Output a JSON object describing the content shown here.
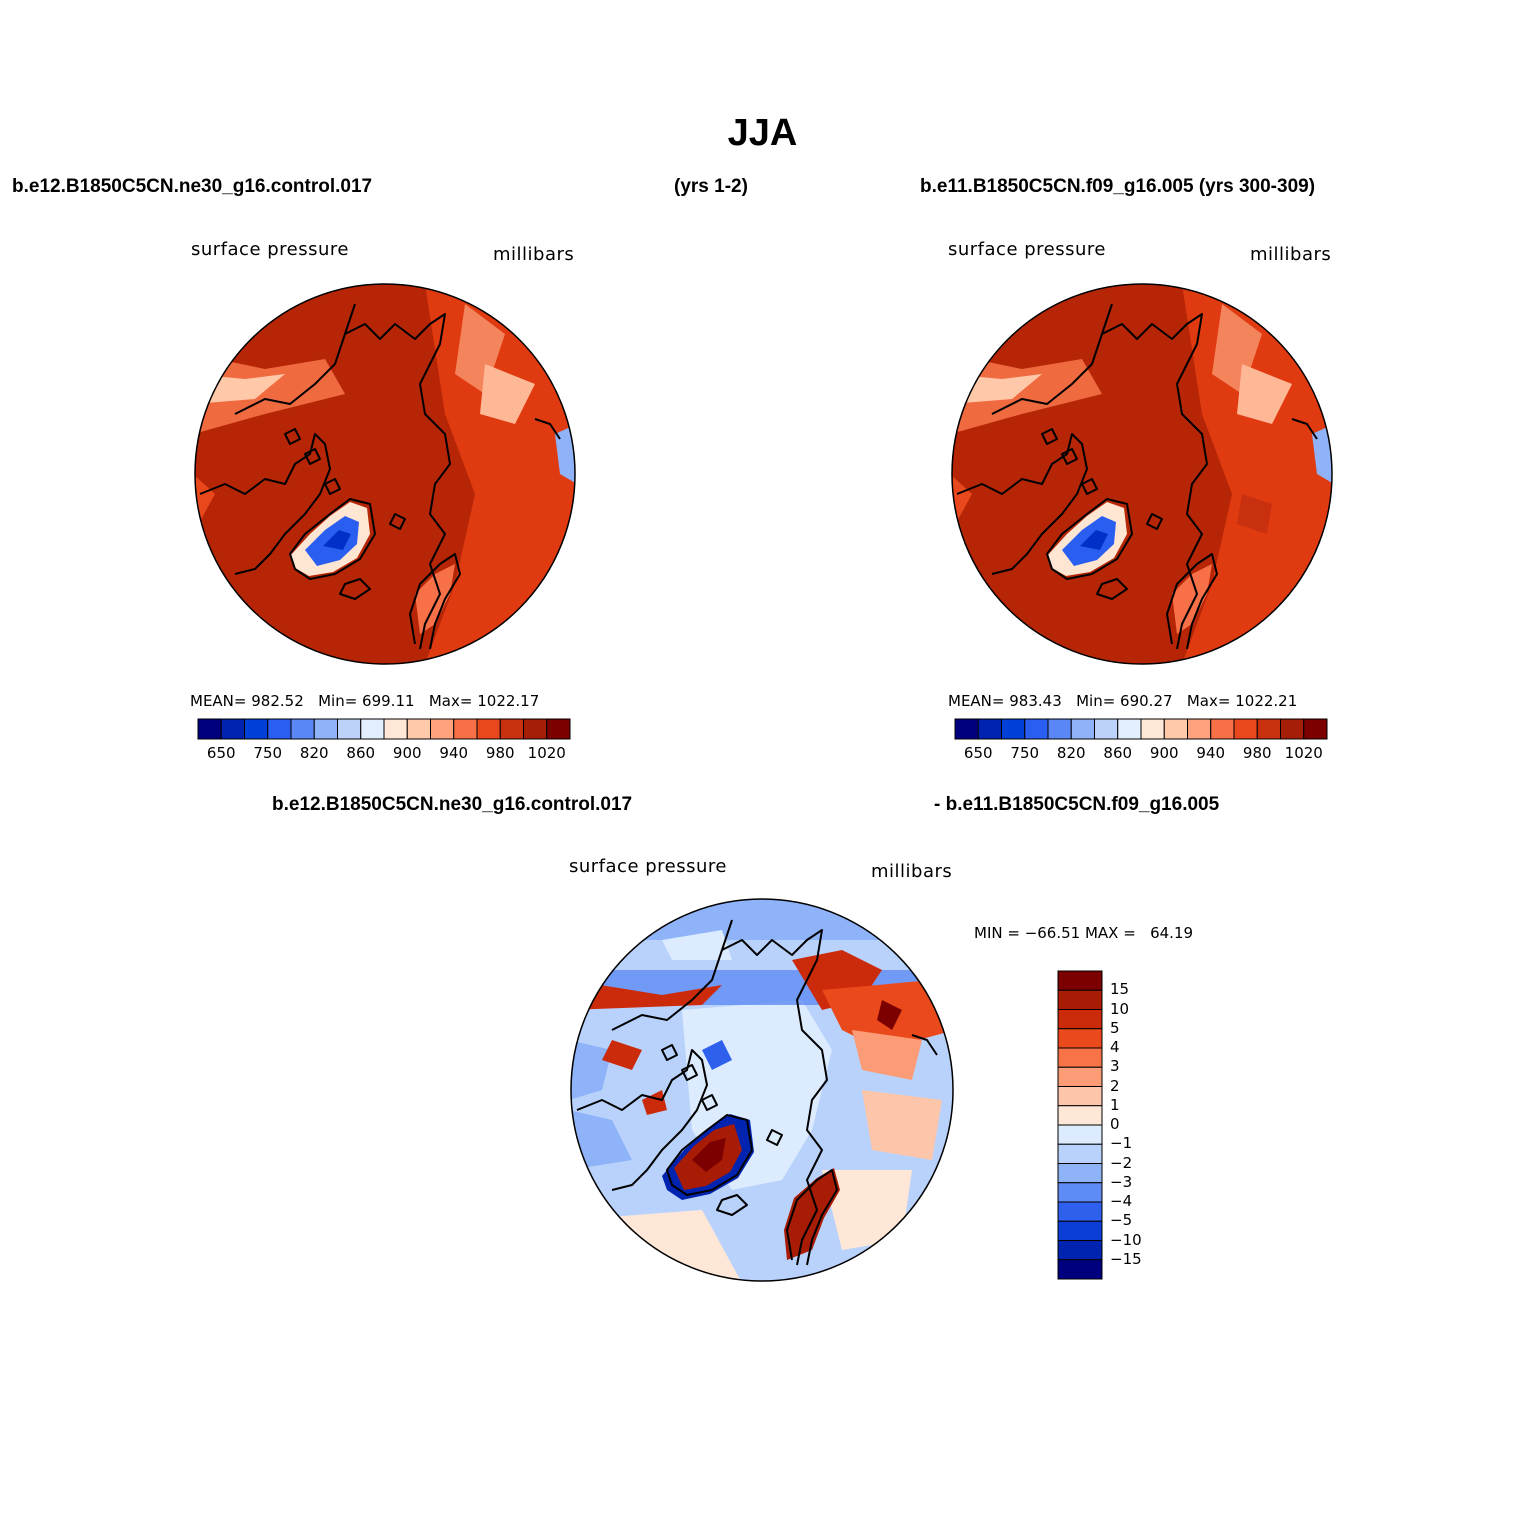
{
  "title": "JJA",
  "top_left": {
    "case": "b.e12.B1850C5CN.ne30_g16.control.017",
    "years": "(yrs 1-2)",
    "variable": "surface pressure",
    "units": "millibars",
    "stats": {
      "mean_label": "MEAN=",
      "mean": "982.52",
      "min_label": "Min=",
      "min": "699.11",
      "max_label": "Max=",
      "max": "1022.17"
    }
  },
  "top_right": {
    "case": "b.e11.B1850C5CN.f09_g16.005 (yrs 300-309)",
    "variable": "surface pressure",
    "units": "millibars",
    "stats": {
      "mean_label": "MEAN=",
      "mean": "983.43",
      "min_label": "Min=",
      "min": "690.27",
      "max_label": "Max=",
      "max": "1022.21"
    }
  },
  "abs_colorbar": {
    "labels": [
      "650",
      "750",
      "820",
      "860",
      "900",
      "940",
      "980",
      "1020"
    ],
    "colors": [
      "#00007f",
      "#0022b0",
      "#0040d8",
      "#2a5ef0",
      "#5a87f5",
      "#90b2f8",
      "#bcd2fb",
      "#e3efff",
      "#ffe8d8",
      "#ffc9aa",
      "#fda27c",
      "#f87048",
      "#e8481c",
      "#c83010",
      "#a41e08",
      "#7d0000"
    ]
  },
  "diff": {
    "case_a": "b.e12.B1850C5CN.ne30_g16.control.017",
    "case_b": "- b.e11.B1850C5CN.f09_g16.005",
    "variable": "surface pressure",
    "units": "millibars",
    "minmax": "MIN = −66.51 MAX =   64.19",
    "colorbar": {
      "labels": [
        "15",
        "10",
        "5",
        "4",
        "3",
        "2",
        "1",
        "0",
        "−1",
        "−2",
        "−3",
        "−4",
        "−5",
        "−10",
        "−15"
      ],
      "colors": [
        "#7d0000",
        "#a81c05",
        "#cc2b0b",
        "#ea4a1b",
        "#f87448",
        "#fb9c76",
        "#fdc5aa",
        "#fee7d6",
        "#dcecfe",
        "#b9d2fc",
        "#8fb3f9",
        "#5f8cf4",
        "#2e60ed",
        "#0b3ed6",
        "#0024b0",
        "#00007f"
      ]
    }
  }
}
